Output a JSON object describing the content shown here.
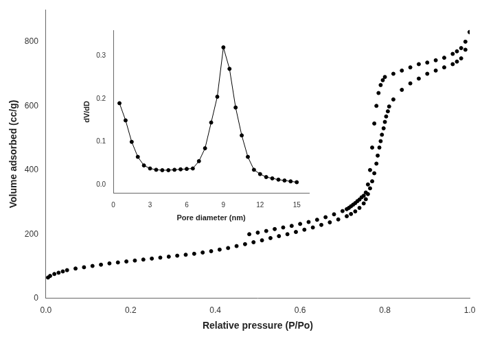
{
  "chart_data": [
    {
      "type": "scatter",
      "xlabel": "Relative pressure (P/Po)",
      "ylabel": "Volume adsorbed (cc/g)",
      "xlim": [
        0.0,
        1.0
      ],
      "ylim": [
        0,
        900
      ],
      "xticks": [
        {
          "value": 0.0,
          "label": "0.0"
        },
        0.2,
        0.4,
        0.6,
        0.8,
        {
          "value": 1.0,
          "label": "1.0"
        }
      ],
      "yticks": [
        0,
        200,
        400,
        600,
        800
      ],
      "grid": false,
      "marker": "circle",
      "series": [
        {
          "color": "#000000",
          "x": [
            0.005,
            0.01,
            0.02,
            0.03,
            0.04,
            0.05,
            0.07,
            0.09,
            0.11,
            0.13,
            0.15,
            0.17,
            0.19,
            0.21,
            0.23,
            0.25,
            0.27,
            0.29,
            0.31,
            0.33,
            0.35,
            0.37,
            0.39,
            0.41,
            0.43,
            0.45,
            0.47,
            0.49,
            0.51,
            0.53,
            0.55,
            0.57,
            0.59,
            0.61,
            0.63,
            0.65,
            0.67,
            0.69,
            0.71,
            0.72,
            0.73,
            0.74,
            0.75,
            0.755,
            0.76,
            0.765,
            0.77,
            0.775,
            0.78,
            0.783,
            0.787,
            0.79,
            0.793,
            0.797,
            0.8,
            0.803,
            0.807,
            0.81,
            0.82,
            0.84,
            0.86,
            0.88,
            0.9,
            0.92,
            0.94,
            0.96,
            0.97,
            0.98,
            0.99,
            1.0
          ],
          "values": [
            65,
            70,
            76,
            80,
            84,
            88,
            93,
            97,
            101,
            105,
            109,
            112,
            115,
            118,
            121,
            124,
            127,
            130,
            133,
            136,
            139,
            143,
            147,
            152,
            157,
            163,
            169,
            175,
            181,
            188,
            194,
            200,
            207,
            214,
            221,
            229,
            237,
            246,
            256,
            263,
            271,
            282,
            296,
            309,
            325,
            343,
            365,
            390,
            420,
            445,
            470,
            490,
            510,
            530,
            550,
            567,
            583,
            598,
            620,
            650,
            670,
            685,
            700,
            710,
            720,
            730,
            738,
            748,
            775,
            830
          ]
        },
        {
          "color": "#000000",
          "x": [
            1.0,
            0.99,
            0.98,
            0.97,
            0.96,
            0.94,
            0.92,
            0.9,
            0.88,
            0.86,
            0.84,
            0.82,
            0.8,
            0.795,
            0.79,
            0.785,
            0.78,
            0.775,
            0.77,
            0.765,
            0.76,
            0.755,
            0.75,
            0.745,
            0.74,
            0.735,
            0.73,
            0.725,
            0.72,
            0.715,
            0.71,
            0.7,
            0.68,
            0.66,
            0.64,
            0.62,
            0.6,
            0.58,
            0.56,
            0.54,
            0.52,
            0.5,
            0.48
          ],
          "values": [
            830,
            800,
            780,
            770,
            762,
            750,
            742,
            735,
            730,
            720,
            710,
            700,
            690,
            680,
            665,
            640,
            600,
            545,
            470,
            400,
            355,
            330,
            320,
            315,
            308,
            303,
            297,
            292,
            287,
            282,
            278,
            272,
            262,
            253,
            245,
            238,
            232,
            226,
            221,
            216,
            210,
            205,
            200
          ]
        }
      ]
    },
    {
      "type": "line",
      "xlabel": "Pore diameter (nm)",
      "ylabel": "dV/dD",
      "xlim": [
        0,
        16
      ],
      "ylim": [
        -0.02,
        0.36
      ],
      "xticks": [
        0,
        3,
        6,
        9,
        12,
        15
      ],
      "yticks": [
        {
          "value": 0.0,
          "label": "0.0"
        },
        0.1,
        0.2,
        0.3
      ],
      "grid": false,
      "color": "#000000",
      "marker": "circle",
      "line_style": "solid",
      "x": [
        0.5,
        1.0,
        1.5,
        2.0,
        2.5,
        3.0,
        3.5,
        4.0,
        4.5,
        5.0,
        5.5,
        6.0,
        6.5,
        7.0,
        7.5,
        8.0,
        8.5,
        9.0,
        9.5,
        10.0,
        10.5,
        11.0,
        11.5,
        12.0,
        12.5,
        13.0,
        13.5,
        14.0,
        14.5,
        15.0
      ],
      "values": [
        0.19,
        0.15,
        0.1,
        0.065,
        0.045,
        0.038,
        0.035,
        0.034,
        0.034,
        0.035,
        0.036,
        0.037,
        0.038,
        0.055,
        0.085,
        0.145,
        0.205,
        0.32,
        0.27,
        0.18,
        0.115,
        0.065,
        0.035,
        0.025,
        0.018,
        0.015,
        0.012,
        0.01,
        0.008,
        0.006
      ]
    }
  ]
}
